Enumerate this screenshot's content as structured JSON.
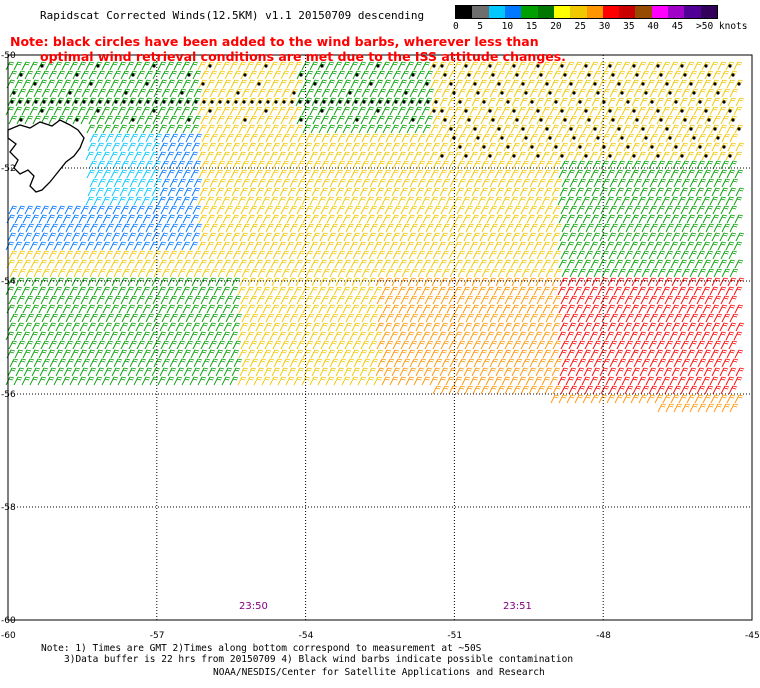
{
  "title": "Rapidscat Corrected Winds(12.5KM) v1.1 20150709 descending",
  "note": {
    "line1": "Note: black circles have been added to the wind barbs, wherever less than",
    "line2": "optimal wind retrieval conditions are met due to the ISS attitude changes."
  },
  "legend": {
    "colors": [
      "#000000",
      "#6e6e6e",
      "#00c8ff",
      "#0078ff",
      "#00a000",
      "#007800",
      "#ffff00",
      "#f0c800",
      "#ff9600",
      "#ff0000",
      "#c80000",
      "#964b00",
      "#ff00ff",
      "#a000c8",
      "#500096",
      "#32005a"
    ],
    "labels": [
      "0",
      "5",
      "10",
      "15",
      "20",
      "25",
      "30",
      "35",
      "40",
      "45",
      ">50 knots"
    ]
  },
  "map": {
    "lat_labels": [
      "-50",
      "-52",
      "-54",
      "-56",
      "-58",
      "-60"
    ],
    "lon_labels": [
      "-60",
      "-57",
      "-54",
      "-51",
      "-48",
      "-45"
    ],
    "lat_range": [
      -60,
      -50
    ],
    "lon_range": [
      -60,
      -45
    ],
    "time_labels": [
      "23:50",
      "23:51"
    ]
  },
  "footer": {
    "line1": "Note: 1) Times are GMT 2)Times along bottom correspond to measurement at ~50S",
    "line2": "3)Data buffer is 22 hrs from 20150709 4) Black wind barbs indicate possible contamination",
    "line3": "NOAA/NESDIS/Center for Satellite Applications and Research"
  }
}
